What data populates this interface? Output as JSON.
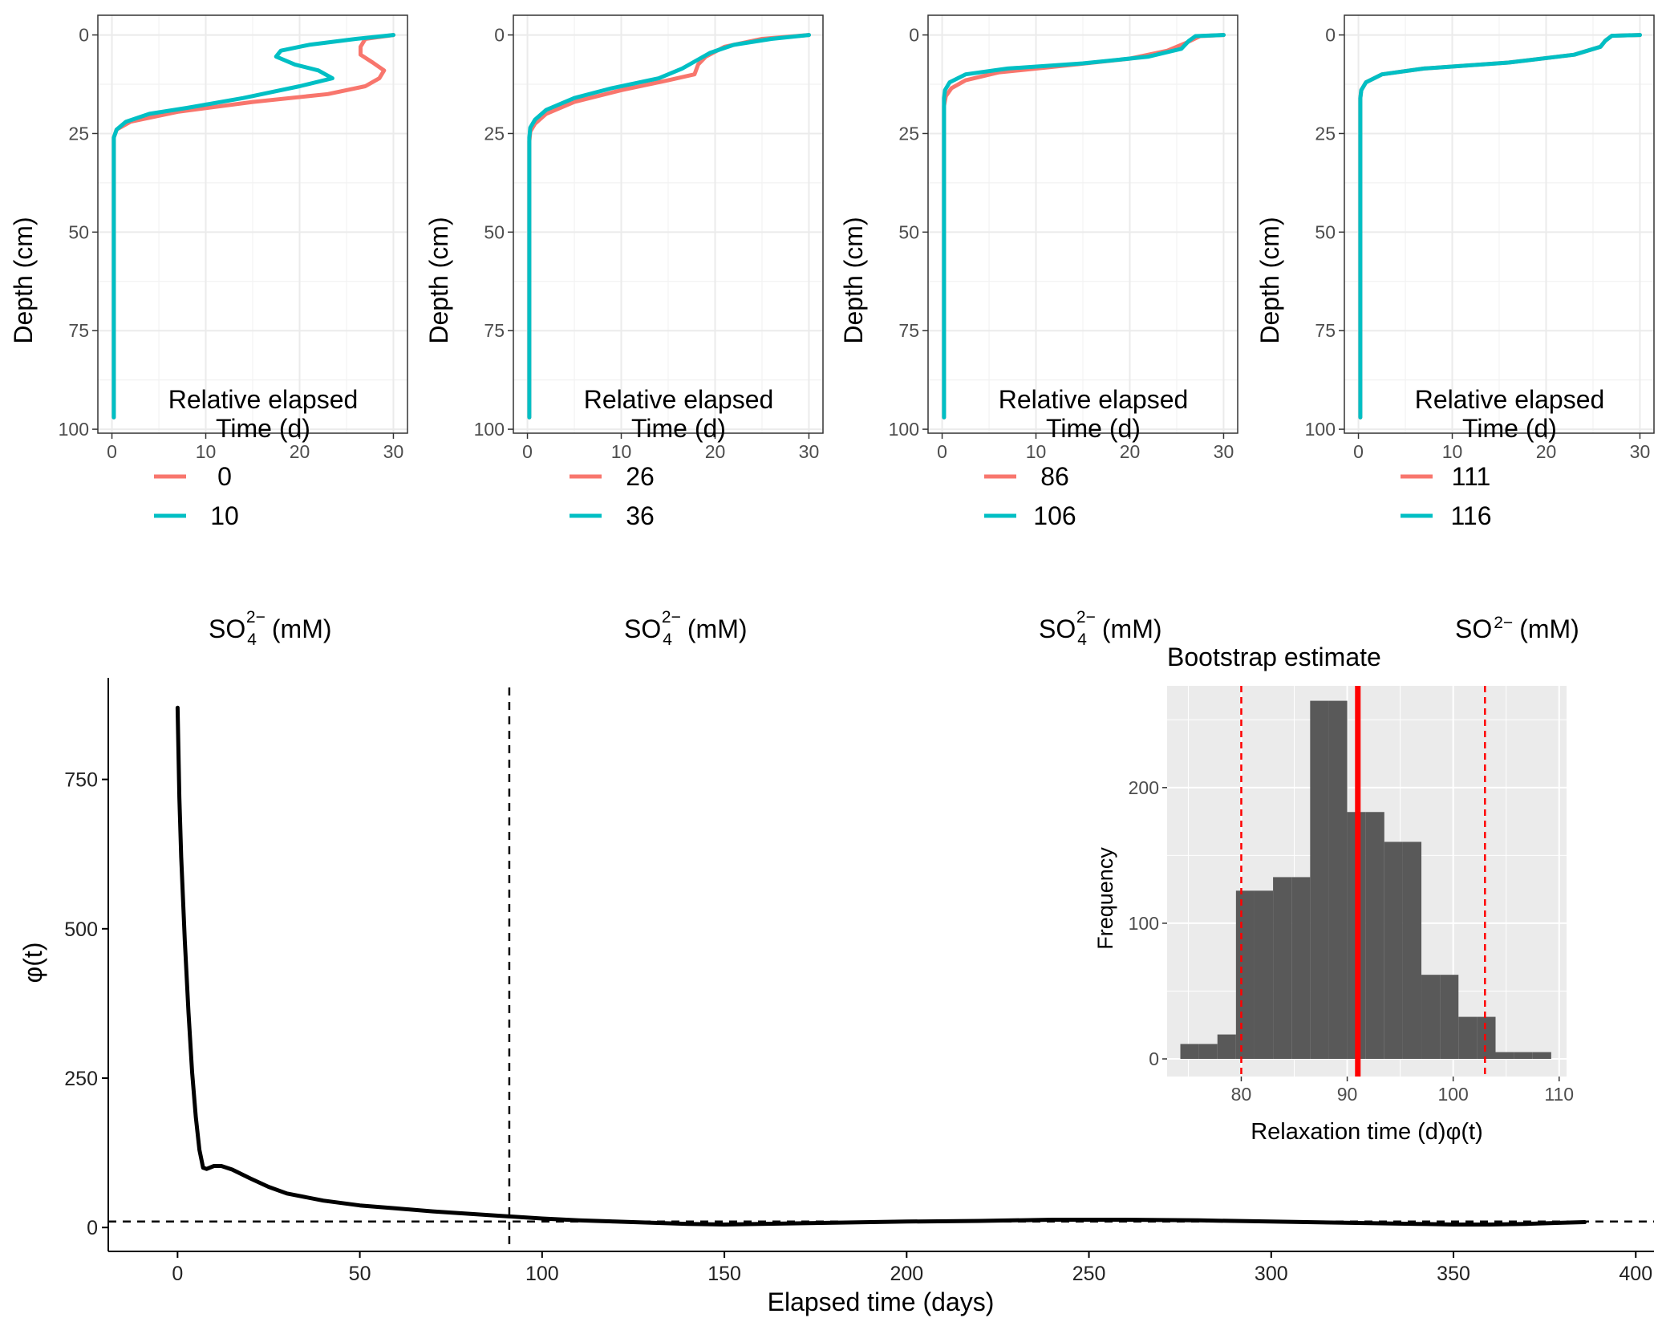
{
  "colors": {
    "series_early": "#F8766D",
    "series_late": "#00BFC4",
    "phi_line": "#000000",
    "hist_bar": "#595959",
    "hist_panel": "#EBEBEB",
    "estimate": "#FF0000",
    "grid_minor": "#F2F2F2",
    "grid_major": "#EBEBEB"
  },
  "chart_data": [
    {
      "type": "line",
      "panel": "profile-1",
      "xlabel_main": "SO",
      "xlabel_sub": "4",
      "xlabel_sup": "2−",
      "xlabel_unit": "(mM)",
      "ylabel": "Depth (cm)",
      "xlim": [
        -1.5,
        31.5
      ],
      "ylim": [
        101,
        -5
      ],
      "y_reversed": true,
      "x_ticks": [
        0,
        10,
        20,
        30
      ],
      "y_ticks": [
        0,
        25,
        50,
        75,
        100
      ],
      "x_tick_labels": [
        "0",
        "10",
        "20",
        "30"
      ],
      "y_tick_labels": [
        "0",
        "25",
        "50",
        "75",
        "100"
      ],
      "grid": true,
      "legend": {
        "title_line1": "Relative elapsed",
        "title_line2": "Time (d)",
        "position": "inside-bottom",
        "labels": [
          "0",
          "10"
        ]
      },
      "series": [
        {
          "name": "0",
          "color_key": "series_early",
          "points": [
            [
              30,
              0
            ],
            [
              27,
              1
            ],
            [
              26.5,
              3
            ],
            [
              26.5,
              5
            ],
            [
              27.8,
              7
            ],
            [
              29,
              9
            ],
            [
              28.5,
              11
            ],
            [
              27,
              13
            ],
            [
              23,
              15
            ],
            [
              15,
              17
            ],
            [
              7,
              19.5
            ],
            [
              2,
              22
            ],
            [
              0.5,
              24
            ],
            [
              0.2,
              26
            ],
            [
              0.2,
              40
            ],
            [
              0.2,
              97
            ]
          ]
        },
        {
          "name": "10",
          "color_key": "series_late",
          "points": [
            [
              30,
              0
            ],
            [
              26,
              1
            ],
            [
              21,
              2.5
            ],
            [
              18,
              4
            ],
            [
              17.5,
              5.5
            ],
            [
              19.5,
              7.5
            ],
            [
              22,
              9
            ],
            [
              23.5,
              11
            ],
            [
              20,
              13
            ],
            [
              14,
              16
            ],
            [
              8,
              18.5
            ],
            [
              4,
              20
            ],
            [
              1.5,
              22
            ],
            [
              0.5,
              24
            ],
            [
              0.2,
              26
            ],
            [
              0.2,
              40
            ],
            [
              0.2,
              97
            ]
          ]
        }
      ]
    },
    {
      "type": "line",
      "panel": "profile-2",
      "xlabel_main": "SO",
      "xlabel_sub": "4",
      "xlabel_sup": "2−",
      "xlabel_unit": "(mM)",
      "ylabel": "Depth (cm)",
      "xlim": [
        -1.5,
        31.5
      ],
      "ylim": [
        101,
        -5
      ],
      "y_reversed": true,
      "x_ticks": [
        0,
        10,
        20,
        30
      ],
      "y_ticks": [
        0,
        25,
        50,
        75,
        100
      ],
      "x_tick_labels": [
        "0",
        "10",
        "20",
        "30"
      ],
      "y_tick_labels": [
        "0",
        "25",
        "50",
        "75",
        "100"
      ],
      "grid": true,
      "legend": {
        "title_line1": "Relative elapsed",
        "title_line2": "Time (d)",
        "position": "inside-bottom",
        "labels": [
          "26",
          "36"
        ]
      },
      "series": [
        {
          "name": "26",
          "color_key": "series_early",
          "points": [
            [
              30,
              0
            ],
            [
              25,
              1
            ],
            [
              21,
              3
            ],
            [
              19,
              5.5
            ],
            [
              18.2,
              7.5
            ],
            [
              17.8,
              10
            ],
            [
              15,
              11.5
            ],
            [
              10,
              14
            ],
            [
              5,
              17
            ],
            [
              2,
              20
            ],
            [
              0.8,
              22.5
            ],
            [
              0.3,
              24.5
            ],
            [
              0.2,
              27
            ],
            [
              0.2,
              40
            ],
            [
              0.2,
              97
            ]
          ]
        },
        {
          "name": "36",
          "color_key": "series_late",
          "points": [
            [
              30,
              0
            ],
            [
              26,
              1
            ],
            [
              22,
              2.5
            ],
            [
              19.5,
              4.5
            ],
            [
              18,
              6.5
            ],
            [
              16.5,
              8.5
            ],
            [
              14,
              11
            ],
            [
              9,
              13.5
            ],
            [
              5,
              16
            ],
            [
              2,
              19
            ],
            [
              0.8,
              21.5
            ],
            [
              0.3,
              23.5
            ],
            [
              0.2,
              26
            ],
            [
              0.2,
              40
            ],
            [
              0.2,
              97
            ]
          ]
        }
      ]
    },
    {
      "type": "line",
      "panel": "profile-3",
      "xlabel_main": "SO",
      "xlabel_sub": "4",
      "xlabel_sup": "2−",
      "xlabel_unit": "(mM)",
      "ylabel": "Depth (cm)",
      "xlim": [
        -1.5,
        31.5
      ],
      "ylim": [
        101,
        -5
      ],
      "y_reversed": true,
      "x_ticks": [
        0,
        10,
        20,
        30
      ],
      "y_ticks": [
        0,
        25,
        50,
        75,
        100
      ],
      "x_tick_labels": [
        "0",
        "10",
        "20",
        "30"
      ],
      "y_tick_labels": [
        "0",
        "25",
        "50",
        "75",
        "100"
      ],
      "grid": true,
      "legend": {
        "title_line1": "Relative elapsed",
        "title_line2": "Time (d)",
        "position": "inside-bottom",
        "labels": [
          "86",
          "106"
        ]
      },
      "series": [
        {
          "name": "86",
          "color_key": "series_early",
          "points": [
            [
              30,
              0
            ],
            [
              27.5,
              0.3
            ],
            [
              26,
              2
            ],
            [
              24,
              4
            ],
            [
              20,
              6
            ],
            [
              13,
              7.8
            ],
            [
              6,
              9.5
            ],
            [
              2.5,
              11.5
            ],
            [
              1,
              13.5
            ],
            [
              0.4,
              15.5
            ],
            [
              0.2,
              18
            ],
            [
              0.2,
              40
            ],
            [
              0.2,
              97
            ]
          ]
        },
        {
          "name": "106",
          "color_key": "series_late",
          "points": [
            [
              30,
              0
            ],
            [
              27,
              0.3
            ],
            [
              26.3,
              1.5
            ],
            [
              25.5,
              3.5
            ],
            [
              22,
              5.5
            ],
            [
              15,
              7.2
            ],
            [
              7,
              8.5
            ],
            [
              2.5,
              10
            ],
            [
              0.8,
              12
            ],
            [
              0.3,
              14
            ],
            [
              0.2,
              16
            ],
            [
              0.2,
              40
            ],
            [
              0.2,
              97
            ]
          ]
        }
      ]
    },
    {
      "type": "line",
      "panel": "profile-4",
      "xlabel_main": "SO",
      "xlabel_sub": "",
      "xlabel_sup": "2−",
      "xlabel_unit": "(mM)",
      "ylabel": "Depth (cm)",
      "xlim": [
        -1.5,
        31.5
      ],
      "ylim": [
        101,
        -5
      ],
      "y_reversed": true,
      "x_ticks": [
        0,
        10,
        20,
        30
      ],
      "y_ticks": [
        0,
        25,
        50,
        75,
        100
      ],
      "x_tick_labels": [
        "0",
        "10",
        "20",
        "30"
      ],
      "y_tick_labels": [
        "0",
        "25",
        "50",
        "75",
        "100"
      ],
      "grid": true,
      "legend": {
        "title_line1": "Relative elapsed",
        "title_line2": "Time (d)",
        "position": "inside-bottom",
        "labels": [
          "111",
          "116"
        ]
      },
      "series": [
        {
          "name": "111",
          "color_key": "series_early",
          "points": [
            [
              30,
              0
            ],
            [
              27,
              0.2
            ],
            [
              26.3,
              1.5
            ],
            [
              25.8,
              3
            ],
            [
              23,
              5
            ],
            [
              16,
              7
            ],
            [
              7,
              8.5
            ],
            [
              2.5,
              10
            ],
            [
              0.8,
              12
            ],
            [
              0.3,
              14
            ],
            [
              0.2,
              16
            ],
            [
              0.2,
              40
            ],
            [
              0.2,
              97
            ]
          ]
        },
        {
          "name": "116",
          "color_key": "series_late",
          "points": [
            [
              30,
              0
            ],
            [
              27,
              0.2
            ],
            [
              26.3,
              1.5
            ],
            [
              25.8,
              3
            ],
            [
              23,
              5
            ],
            [
              16,
              7
            ],
            [
              7,
              8.5
            ],
            [
              2.5,
              10
            ],
            [
              0.8,
              12
            ],
            [
              0.3,
              14
            ],
            [
              0.2,
              16
            ],
            [
              0.2,
              40
            ],
            [
              0.2,
              97
            ]
          ]
        }
      ]
    },
    {
      "type": "line",
      "panel": "phi",
      "xlabel": "Elapsed time (days)",
      "ylabel": "φ(t)",
      "xlim": [
        -19,
        405
      ],
      "ylim": [
        -40,
        920
      ],
      "x_ticks": [
        0,
        50,
        100,
        150,
        200,
        250,
        300,
        350,
        400
      ],
      "y_ticks": [
        0,
        250,
        500,
        750
      ],
      "x_tick_labels": [
        "0",
        "50",
        "100",
        "150",
        "200",
        "250",
        "300",
        "350",
        "400"
      ],
      "y_tick_labels": [
        "0",
        "250",
        "500",
        "750"
      ],
      "grid": false,
      "vline_x": 91,
      "hline_y": 10,
      "series": [
        {
          "name": "",
          "color_key": "phi_line",
          "points": [
            [
              0,
              870
            ],
            [
              0.5,
              720
            ],
            [
              1,
              620
            ],
            [
              2,
              480
            ],
            [
              3,
              360
            ],
            [
              4,
              260
            ],
            [
              5,
              185
            ],
            [
              6,
              130
            ],
            [
              7,
              100
            ],
            [
              8,
              98
            ],
            [
              10,
              103
            ],
            [
              12,
              103
            ],
            [
              15,
              97
            ],
            [
              20,
              82
            ],
            [
              25,
              68
            ],
            [
              30,
              57
            ],
            [
              40,
              45
            ],
            [
              50,
              37
            ],
            [
              60,
              32
            ],
            [
              70,
              27
            ],
            [
              80,
              23
            ],
            [
              90,
              19
            ],
            [
              100,
              15
            ],
            [
              110,
              12
            ],
            [
              120,
              10
            ],
            [
              130,
              8
            ],
            [
              140,
              6
            ],
            [
              150,
              5
            ],
            [
              160,
              6
            ],
            [
              180,
              8
            ],
            [
              200,
              10
            ],
            [
              220,
              11
            ],
            [
              240,
              13
            ],
            [
              260,
              13
            ],
            [
              280,
              12
            ],
            [
              300,
              10
            ],
            [
              320,
              8
            ],
            [
              340,
              6
            ],
            [
              350,
              5
            ],
            [
              360,
              5
            ],
            [
              370,
              6
            ],
            [
              380,
              8
            ],
            [
              386,
              9
            ]
          ]
        }
      ]
    },
    {
      "type": "bar",
      "panel": "histogram",
      "title": "Bootstrap estimate",
      "xlabel": "Relaxation time (d)φ(t)",
      "ylabel": "Frequency",
      "xlim": [
        73,
        110.7
      ],
      "ylim": [
        -13,
        275
      ],
      "x_ticks": [
        80,
        90,
        100,
        110
      ],
      "y_ticks": [
        0,
        100,
        200
      ],
      "x_tick_labels": [
        "80",
        "90",
        "100",
        "110"
      ],
      "y_tick_labels": [
        "0",
        "100",
        "200"
      ],
      "grid": true,
      "bin_width": 1.75,
      "bin_starts": [
        74.5,
        76.25,
        78,
        79.75,
        81.5,
        83.25,
        85,
        86.75,
        88.5,
        90.25,
        92,
        93.75,
        95.5,
        97.25,
        99,
        100.75,
        102.5,
        104.25,
        106,
        107.75
      ],
      "bins": [
        {
          "x0": 74.25,
          "x1": 76.0,
          "count": 11
        },
        {
          "x0": 76.0,
          "x1": 77.75,
          "count": 11
        },
        {
          "x0": 77.75,
          "x1": 79.5,
          "count": 18
        },
        {
          "x0": 79.5,
          "x1": 81.25,
          "count": 124
        },
        {
          "x0": 81.25,
          "x1": 83.0,
          "count": 124
        },
        {
          "x0": 83.0,
          "x1": 84.75,
          "count": 134
        },
        {
          "x0": 84.75,
          "x1": 86.5,
          "count": 134
        },
        {
          "x0": 86.5,
          "x1": 88.25,
          "count": 264
        },
        {
          "x0": 88.25,
          "x1": 90.0,
          "count": 264
        },
        {
          "x0": 90.0,
          "x1": 91.75,
          "count": 182
        },
        {
          "x0": 91.75,
          "x1": 93.5,
          "count": 182
        },
        {
          "x0": 93.5,
          "x1": 95.25,
          "count": 160
        },
        {
          "x0": 95.25,
          "x1": 97.0,
          "count": 160
        },
        {
          "x0": 97.0,
          "x1": 98.75,
          "count": 62
        },
        {
          "x0": 98.75,
          "x1": 100.5,
          "count": 62
        },
        {
          "x0": 100.5,
          "x1": 102.25,
          "count": 31
        },
        {
          "x0": 102.25,
          "x1": 104.0,
          "count": 31
        },
        {
          "x0": 104.0,
          "x1": 105.75,
          "count": 5
        },
        {
          "x0": 105.75,
          "x1": 107.5,
          "count": 5
        },
        {
          "x0": 107.5,
          "x1": 109.25,
          "count": 5
        }
      ],
      "estimate": 91,
      "ci_lower": 80,
      "ci_upper": 103
    }
  ]
}
